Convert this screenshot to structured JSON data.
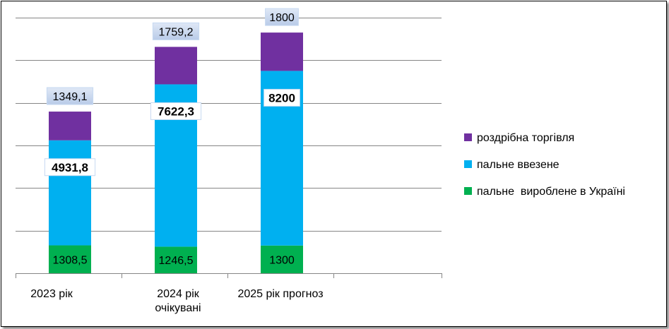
{
  "chart_data": {
    "type": "bar",
    "stacked": true,
    "categories": [
      "2023 рік",
      "2024 рік очікувані",
      "2025 рік прогноз"
    ],
    "category_lines": [
      [
        "2023 рік"
      ],
      [
        "2024 рік",
        "очікувані"
      ],
      [
        "2025 рік прогноз"
      ]
    ],
    "series": [
      {
        "name": "пальне  вироблене в Україні",
        "values": [
          1308.5,
          1246.5,
          1300
        ],
        "labels": [
          "1308,5",
          "1246,5",
          "1300"
        ],
        "color": "#00b050",
        "bold": false,
        "boxed": false
      },
      {
        "name": "пальне ввезене",
        "values": [
          4931.8,
          7622.3,
          8200
        ],
        "labels": [
          "4931,8",
          "7622,3",
          "8200"
        ],
        "color": "#00b0f0",
        "bold": true,
        "boxed": true
      },
      {
        "name": "роздрібна торгівля",
        "values": [
          1349.1,
          1759.2,
          1800
        ],
        "labels": [
          "1349,1",
          "1759,2",
          "1800"
        ],
        "color": "#7030a0",
        "bold": false,
        "boxed": true
      }
    ],
    "ylim": [
      0,
      12000
    ],
    "gridlines": 6,
    "grid": true,
    "legend": "right"
  }
}
